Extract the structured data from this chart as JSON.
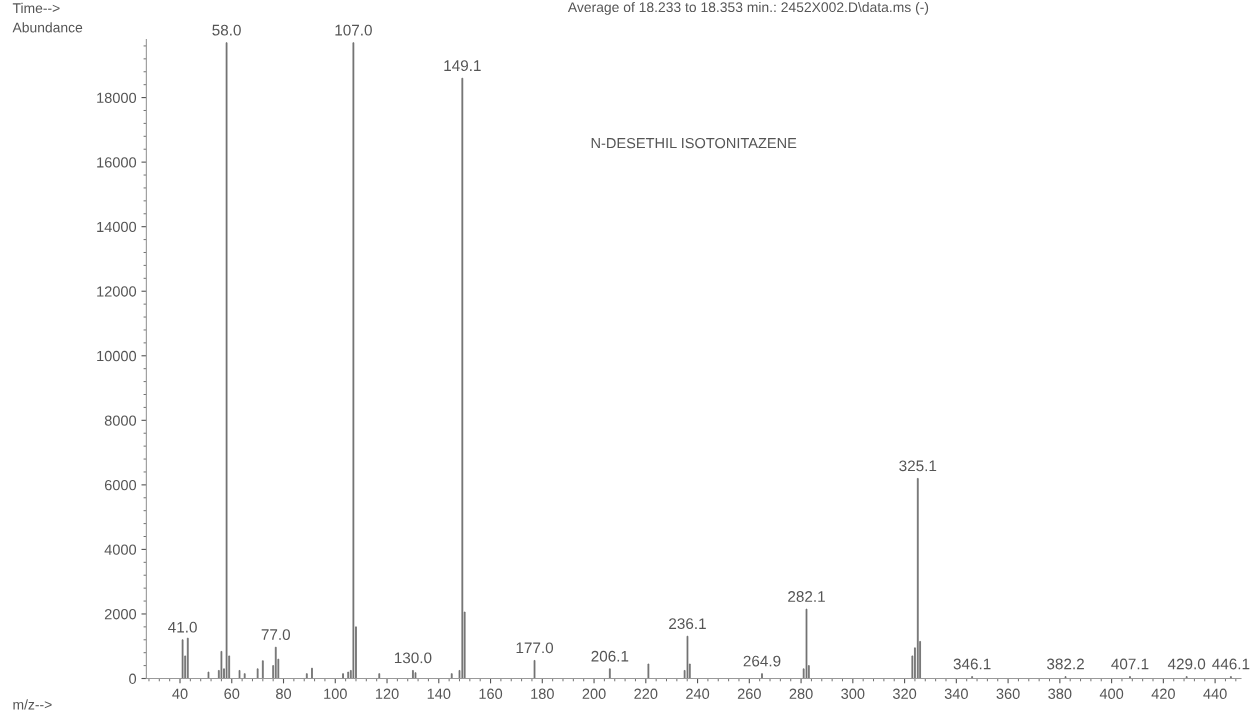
{
  "chart_data": {
    "type": "bar",
    "title": "Average of 18.233 to 18.353 min.: 2452X002.D\\data.ms (-)",
    "xlabel": "m/z-->",
    "ylabel": "Abundance",
    "annotations": [
      "Time-->",
      "N-DESETHIL ISOTONITAZENE",
      {
        "text": "41.0",
        "x": 41,
        "y": 1200
      },
      {
        "text": "58.0",
        "x": 58,
        "y": 19700
      },
      {
        "text": "77.0",
        "x": 77,
        "y": 970
      },
      {
        "text": "107.0",
        "x": 107,
        "y": 19700
      },
      {
        "text": "130.0",
        "x": 130,
        "y": 250
      },
      {
        "text": "149.1",
        "x": 149.1,
        "y": 18600
      },
      {
        "text": "177.0",
        "x": 177,
        "y": 560
      },
      {
        "text": "206.1",
        "x": 206.1,
        "y": 300
      },
      {
        "text": "236.1",
        "x": 236.1,
        "y": 1310
      },
      {
        "text": "264.9",
        "x": 264.9,
        "y": 150
      },
      {
        "text": "282.1",
        "x": 282.1,
        "y": 2150
      },
      {
        "text": "325.1",
        "x": 325.1,
        "y": 6200
      },
      {
        "text": "346.1",
        "x": 346.1,
        "y": 60
      },
      {
        "text": "382.2",
        "x": 382.2,
        "y": 60
      },
      {
        "text": "407.1",
        "x": 407.1,
        "y": 60
      },
      {
        "text": "429.0",
        "x": 429,
        "y": 60
      },
      {
        "text": "446.1",
        "x": 446.1,
        "y": 60
      }
    ],
    "x": [
      41,
      42,
      43,
      51,
      55,
      56,
      57,
      58,
      59,
      63,
      65,
      70,
      72,
      76,
      77,
      78,
      89,
      91,
      103,
      105,
      106,
      107,
      108,
      117,
      130,
      131,
      145,
      148,
      149.1,
      150,
      177,
      206.1,
      221,
      235,
      236.1,
      237,
      264.9,
      281,
      282.1,
      283,
      323,
      324,
      325.1,
      326,
      346.1,
      382.2,
      407.1,
      429,
      446.1
    ],
    "values": [
      1200,
      700,
      1250,
      200,
      250,
      840,
      300,
      19700,
      700,
      250,
      150,
      300,
      550,
      400,
      970,
      600,
      150,
      320,
      150,
      200,
      250,
      19700,
      1600,
      150,
      250,
      180,
      150,
      250,
      18600,
      2060,
      560,
      300,
      450,
      250,
      1310,
      450,
      150,
      300,
      2150,
      400,
      700,
      950,
      6200,
      1150,
      60,
      60,
      60,
      60,
      60
    ],
    "color": "#6f6f6f",
    "xlim": [
      27,
      450
    ],
    "xticks": [
      40,
      60,
      80,
      100,
      120,
      140,
      160,
      180,
      200,
      220,
      240,
      260,
      280,
      300,
      320,
      340,
      360,
      380,
      400,
      420,
      440
    ],
    "ylim": [
      0,
      19800
    ],
    "yticks": [
      0,
      2000,
      4000,
      6000,
      8000,
      10000,
      12000,
      14000,
      16000,
      18000
    ]
  }
}
